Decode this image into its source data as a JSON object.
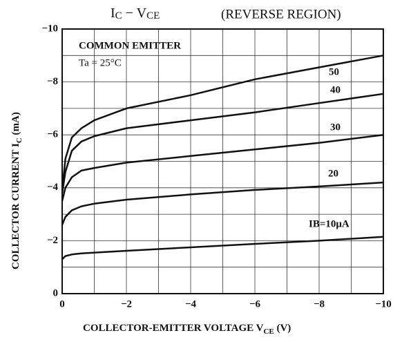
{
  "chart_data": {
    "type": "line",
    "title": [
      "I",
      "C",
      " − V",
      "CE"
    ],
    "subtitle": "(REVERSE REGION)",
    "x_label": [
      "COLLECTOR-EMITTER VOLTAGE  V",
      "CE",
      "  (V)"
    ],
    "y_label": [
      "COLLECTOR CURRENT  I",
      "C",
      "  (mA)"
    ],
    "annotations": [
      "COMMON EMITTER",
      "Ta = 25°C"
    ],
    "xlim": [
      0,
      -10
    ],
    "ylim": [
      0,
      -10
    ],
    "xticks": [
      0,
      {
        "value": -2,
        "label": "−2"
      },
      {
        "value": -4,
        "label": "−4"
      },
      {
        "value": -6,
        "label": "−6"
      },
      {
        "value": -8,
        "label": "−8"
      },
      {
        "value": -10,
        "label": "−10"
      }
    ],
    "yticks": [
      0,
      {
        "value": -2,
        "label": "−2"
      },
      {
        "value": -4,
        "label": "−4"
      },
      {
        "value": -6,
        "label": "−6"
      },
      {
        "value": -8,
        "label": "−8"
      },
      {
        "value": -10,
        "label": "−10"
      }
    ],
    "minor_xgrid": [
      -1,
      -3,
      -5,
      -7,
      -9
    ],
    "minor_ygrid": [
      -1,
      -3,
      -5,
      -7,
      -9
    ],
    "grid": true,
    "x": [
      0,
      -0.1,
      -0.3,
      -0.6,
      -1,
      -2,
      -4,
      -6,
      -8,
      -10
    ],
    "series": [
      {
        "name": "IB=10μA",
        "color": "#111111",
        "values": [
          -1.3,
          -1.42,
          -1.48,
          -1.52,
          -1.55,
          -1.62,
          -1.75,
          -1.88,
          -2.0,
          -2.15
        ]
      },
      {
        "name": "20",
        "color": "#111111",
        "values": [
          -2.6,
          -2.9,
          -3.15,
          -3.3,
          -3.4,
          -3.55,
          -3.75,
          -3.92,
          -4.05,
          -4.2
        ]
      },
      {
        "name": "30",
        "color": "#111111",
        "values": [
          -3.5,
          -4.0,
          -4.4,
          -4.65,
          -4.75,
          -4.95,
          -5.2,
          -5.45,
          -5.7,
          -6.0
        ]
      },
      {
        "name": "40",
        "color": "#111111",
        "values": [
          -3.8,
          -4.6,
          -5.4,
          -5.75,
          -5.95,
          -6.25,
          -6.55,
          -6.85,
          -7.2,
          -7.55
        ]
      },
      {
        "name": "50",
        "color": "#111111",
        "values": [
          -3.9,
          -5.1,
          -5.9,
          -6.25,
          -6.55,
          -7.0,
          -7.5,
          -8.1,
          -8.55,
          -9.0
        ]
      }
    ]
  }
}
